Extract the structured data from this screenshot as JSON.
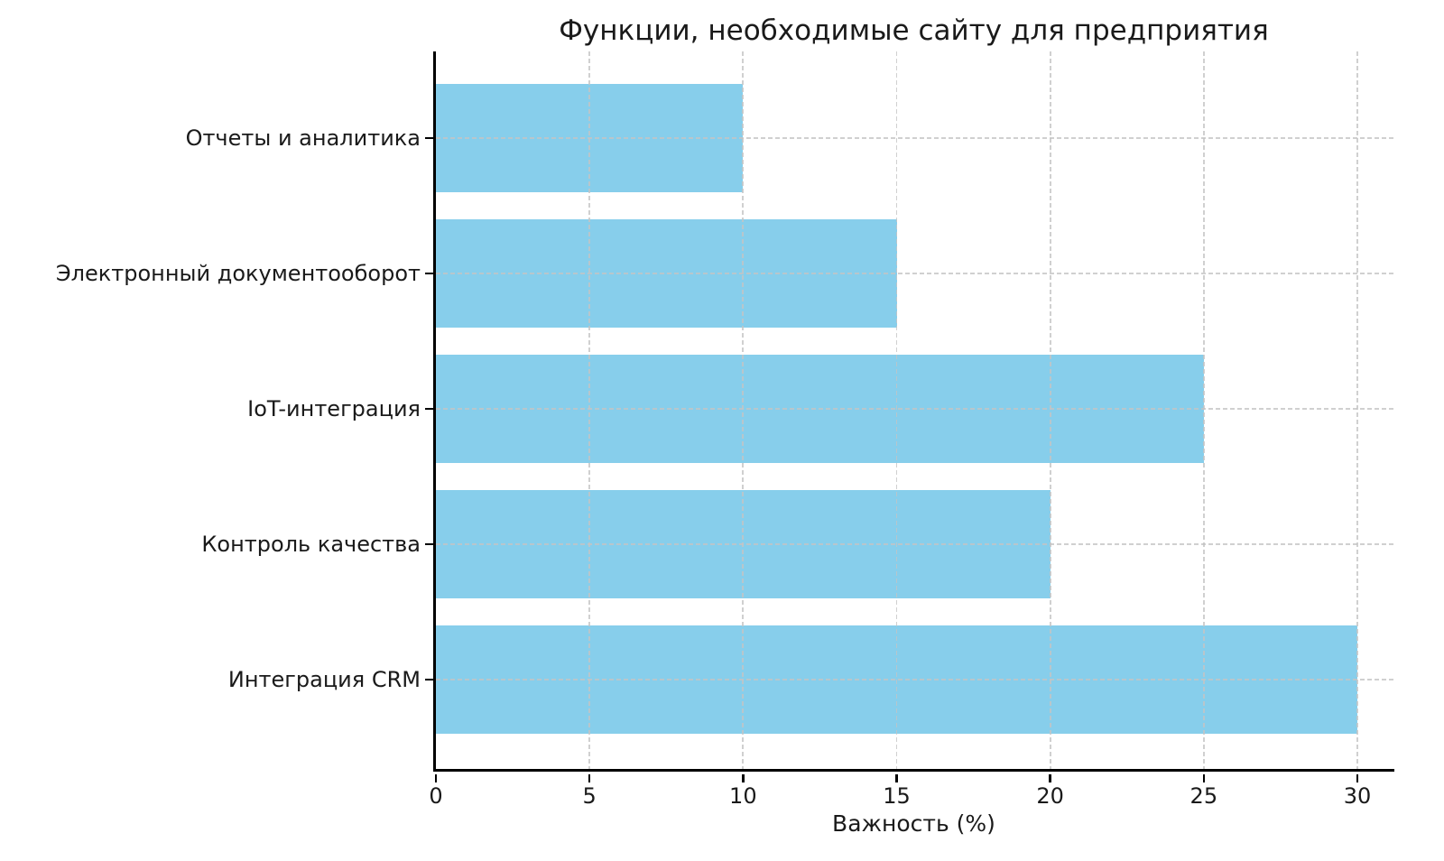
{
  "chart_data": {
    "type": "bar",
    "orientation": "horizontal",
    "title": "Функции, необходимые сайту для предприятия",
    "xlabel": "Важность (%)",
    "ylabel": "",
    "categories": [
      "Отчеты и аналитика",
      "Электронный документооборот",
      "IoT-интеграция",
      "Контроль качества",
      "Интеграция CRM"
    ],
    "values": [
      10,
      15,
      25,
      20,
      30
    ],
    "xticks": [
      0,
      5,
      10,
      15,
      20,
      25,
      30
    ],
    "xlim": [
      0,
      31.3
    ],
    "bar_color": "#87CEEB",
    "background_color": "#ffffff",
    "grid": {
      "visible": true,
      "style": "dashed",
      "color": "#c4c4c4",
      "on_top_of_bars": true
    },
    "spines": [
      "left",
      "bottom"
    ],
    "legend": null
  }
}
